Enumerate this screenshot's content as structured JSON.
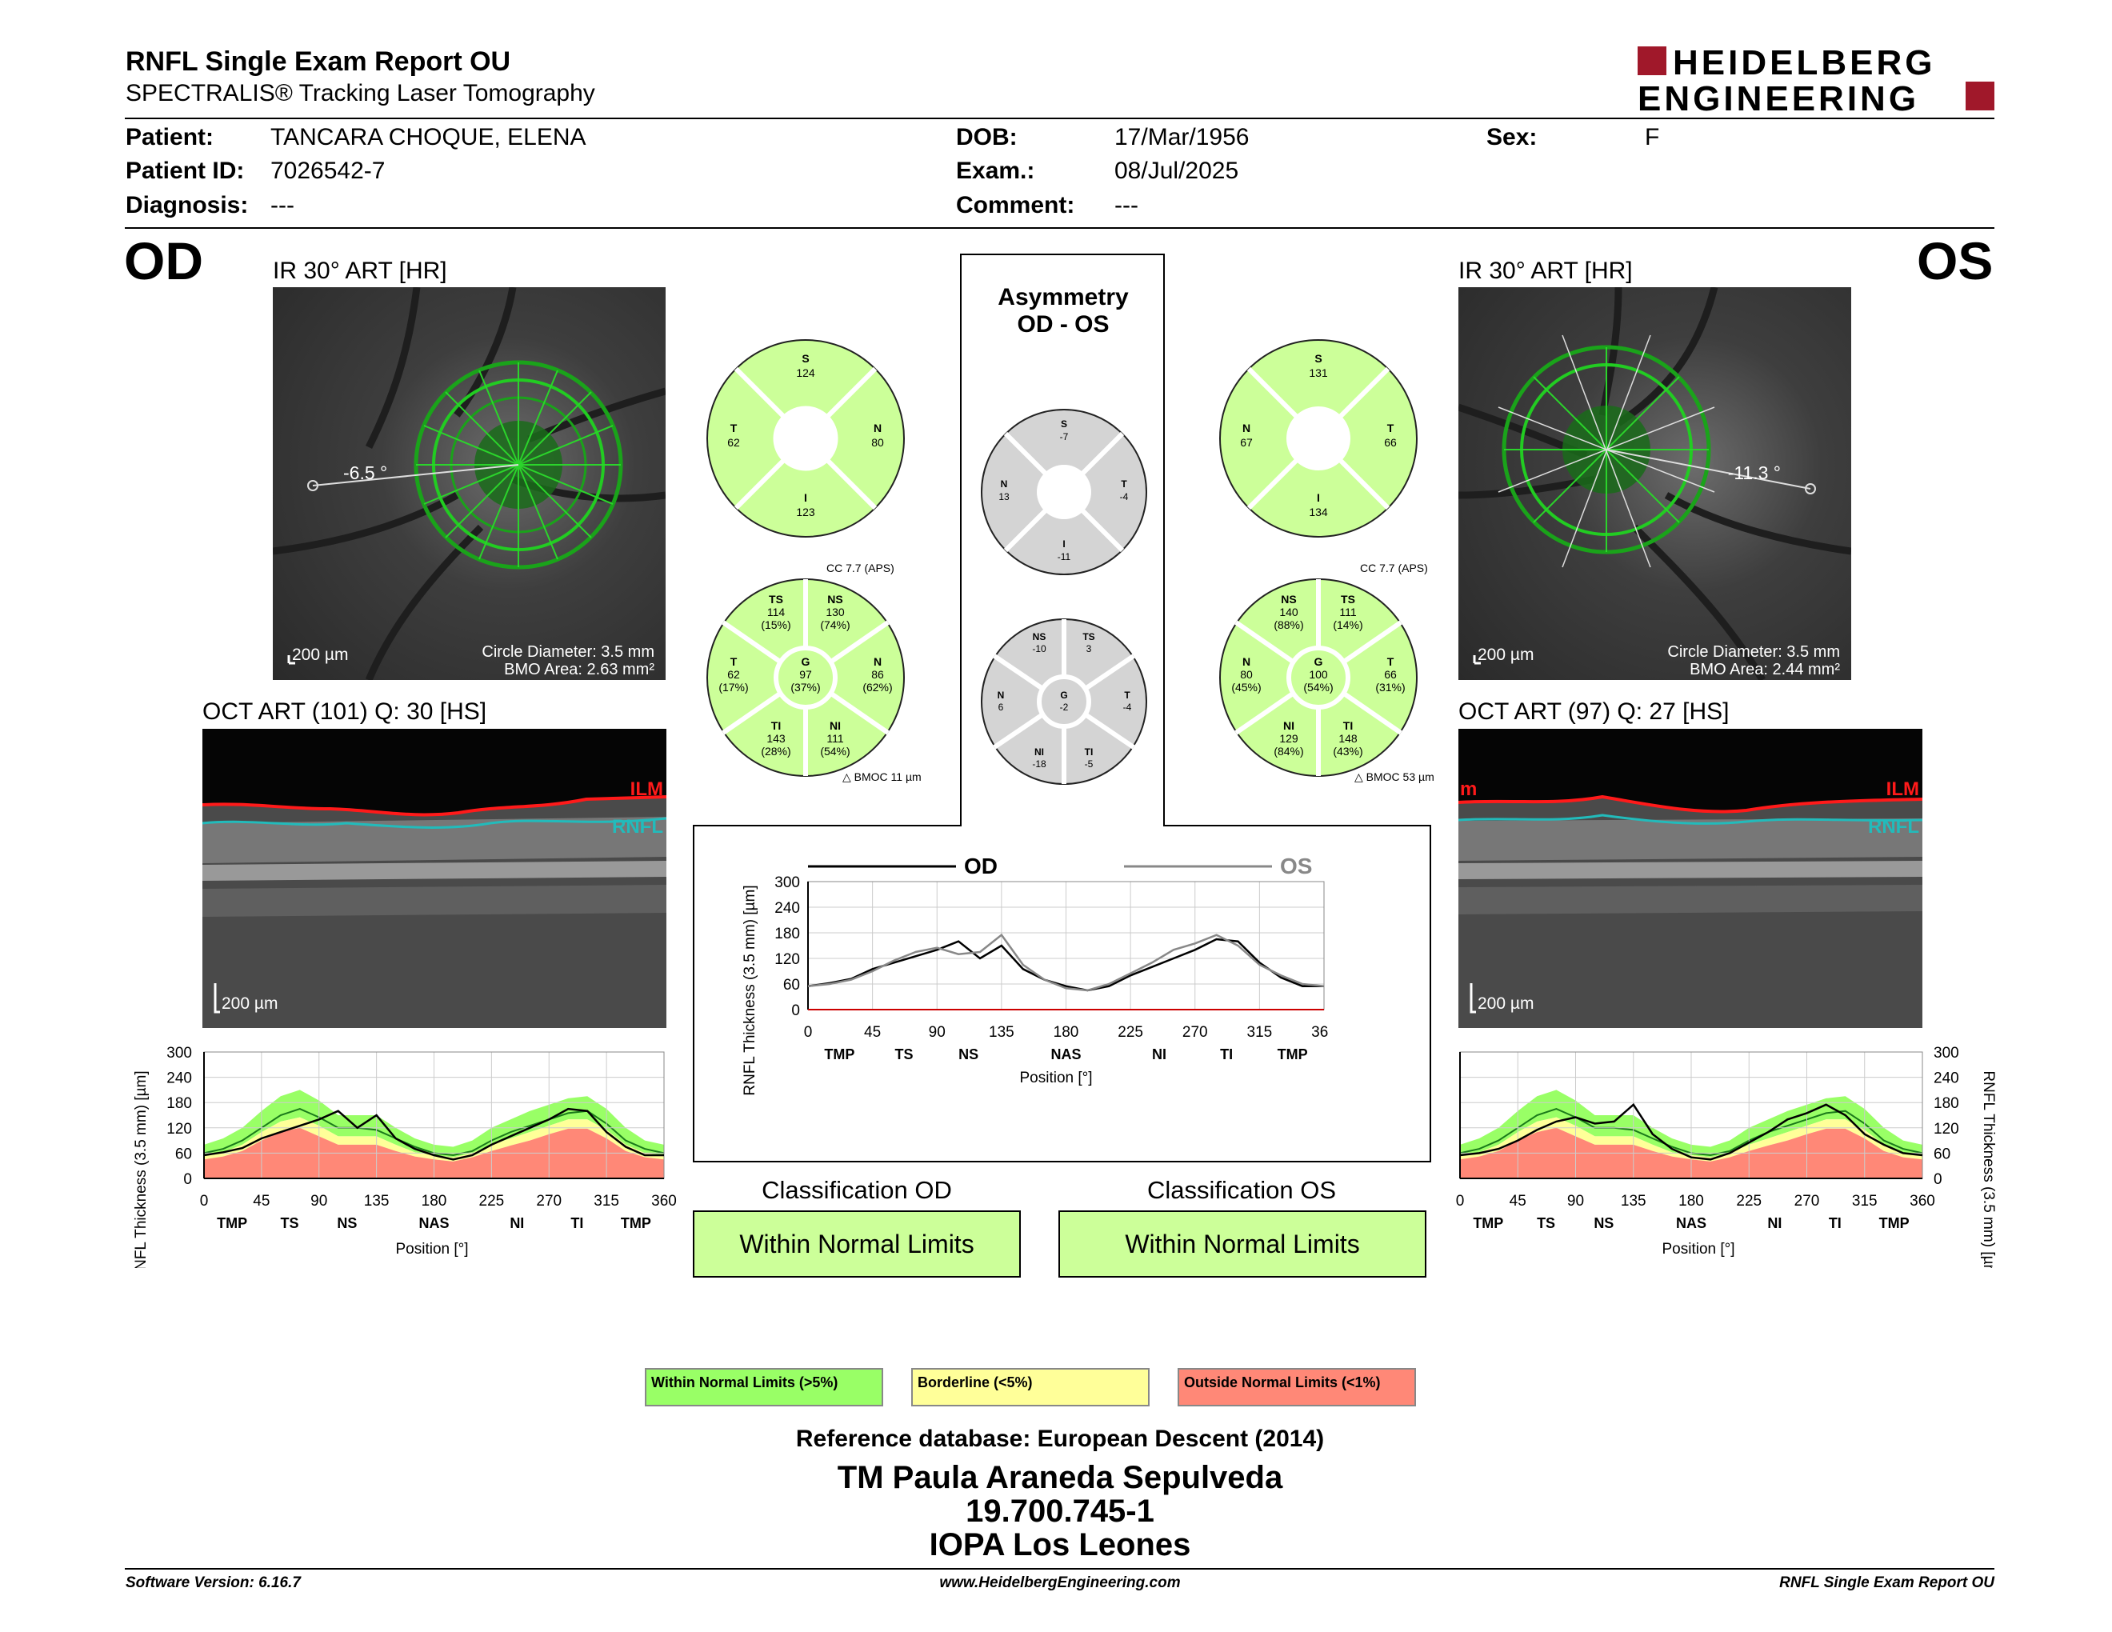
{
  "header": {
    "title": "RNFL Single Exam Report OU",
    "subtitle": "SPECTRALIS® Tracking Laser Tomography",
    "logo_line1": "HEIDELBERG",
    "logo_line2": "ENGINEERING"
  },
  "patient": {
    "patient_label": "Patient:",
    "patient_value": "TANCARA CHOQUE, ELENA",
    "id_label": "Patient ID:",
    "id_value": "7026542-7",
    "diagnosis_label": "Diagnosis:",
    "diagnosis_value": "---",
    "dob_label": "DOB:",
    "dob_value": "17/Mar/1956",
    "exam_label": "Exam.:",
    "exam_value": "08/Jul/2025",
    "comment_label": "Comment:",
    "comment_value": "---",
    "sex_label": "Sex:",
    "sex_value": "F"
  },
  "od": {
    "eye_label": "OD",
    "ir_caption": "IR 30° ART [HR]",
    "angle": "-6.5 °",
    "scale": "200 µm",
    "circle_diameter": "Circle Diameter: 3.5 mm",
    "bmo_area": "BMO Area: 2.63 mm²",
    "oct_caption": "OCT ART (101) Q: 30 [HS]",
    "oct_scale": "200 µm",
    "ilm": "ILM",
    "rnfl": "RNFL",
    "quad": {
      "S": "124",
      "T": "62",
      "N": "80",
      "I": "123"
    },
    "sector": {
      "TS": "114",
      "TS_pct": "(15%)",
      "NS": "130",
      "NS_pct": "(74%)",
      "T": "62",
      "T_pct": "(17%)",
      "G": "97",
      "G_pct": "(37%)",
      "N": "86",
      "N_pct": "(62%)",
      "TI": "143",
      "TI_pct": "(28%)",
      "NI": "111",
      "NI_pct": "(54%)"
    },
    "cc": "CC 7.7 (APS)",
    "bmoc": "BMOC 11 µm",
    "classification_head": "Classification OD",
    "classification": "Within Normal Limits"
  },
  "os": {
    "eye_label": "OS",
    "ir_caption": "IR 30° ART [HR]",
    "angle": "-11.3 °",
    "scale": "200 µm",
    "circle_diameter": "Circle Diameter: 3.5 mm",
    "bmo_area": "BMO Area: 2.44 mm²",
    "oct_caption": "OCT ART (97) Q: 27 [HS]",
    "oct_scale": "200 µm",
    "ilm": "ILM",
    "rnfl": "RNFL",
    "ilm_left": "m",
    "quad": {
      "S": "131",
      "N": "67",
      "T": "66",
      "I": "134"
    },
    "sector": {
      "NS": "140",
      "NS_pct": "(88%)",
      "TS": "111",
      "TS_pct": "(14%)",
      "N": "80",
      "N_pct": "(45%)",
      "G": "100",
      "G_pct": "(54%)",
      "T": "66",
      "T_pct": "(31%)",
      "NI": "129",
      "NI_pct": "(84%)",
      "TI": "148",
      "TI_pct": "(43%)"
    },
    "cc": "CC 7.7 (APS)",
    "bmoc": "BMOC 53 µm",
    "classification_head": "Classification OS",
    "classification": "Within Normal Limits"
  },
  "asymmetry": {
    "title1": "Asymmetry",
    "title2": "OD - OS",
    "quad": {
      "S": "-7",
      "N": "13",
      "T": "-4",
      "I": "-11"
    },
    "sector": {
      "NS": "-10",
      "TS": "3",
      "N": "6",
      "G": "-2",
      "T": "-4",
      "NI": "-18",
      "TI": "-5"
    }
  },
  "sector_labels": {
    "S": "S",
    "T": "T",
    "N": "N",
    "I": "I",
    "TS": "TS",
    "NS": "NS",
    "G": "G",
    "TI": "TI",
    "NI": "NI"
  },
  "charts": {
    "ylabel": "RNFL Thickness (3.5 mm) [µm]",
    "xlabel": "Position [°]",
    "y_ticks": [
      "300",
      "240",
      "180",
      "120",
      "60",
      "0"
    ],
    "y_ticks_center": [
      "300",
      "240",
      "180",
      "120",
      "60",
      "0"
    ],
    "x_ticks": [
      "0",
      "45",
      "90",
      "135",
      "180",
      "225",
      "270",
      "315",
      "360"
    ],
    "regions_od": [
      "TMP",
      "TS",
      "NS",
      "NAS",
      "NI",
      "TI",
      "TMP"
    ],
    "regions_center": [
      "TMP",
      "TS",
      "NS",
      "NAS",
      "NI",
      "TI",
      "TMP"
    ],
    "regions_os": [
      "TMP",
      "TS",
      "NS",
      "NAS",
      "NI",
      "TI",
      "TMP"
    ],
    "legend_od": "OD",
    "legend_os": "OS"
  },
  "chart_data": [
    {
      "type": "line",
      "title": "",
      "xlabel": "Position [°]",
      "ylabel": "RNFL Thickness (3.5 mm) [µm]",
      "xlim": [
        0,
        360
      ],
      "ylim": [
        0,
        300
      ],
      "x": [
        0,
        15,
        30,
        45,
        60,
        75,
        90,
        105,
        120,
        135,
        150,
        165,
        180,
        195,
        210,
        225,
        240,
        255,
        270,
        285,
        300,
        315,
        330,
        345,
        360
      ],
      "series": [
        {
          "name": "OD",
          "values": [
            55,
            62,
            72,
            95,
            110,
            125,
            140,
            160,
            120,
            150,
            95,
            70,
            55,
            45,
            55,
            80,
            100,
            120,
            140,
            165,
            160,
            110,
            75,
            55,
            55
          ]
        },
        {
          "name": "OS",
          "values": [
            55,
            60,
            70,
            90,
            115,
            135,
            145,
            130,
            135,
            175,
            105,
            70,
            50,
            45,
            60,
            85,
            110,
            140,
            155,
            175,
            150,
            105,
            80,
            60,
            55
          ]
        }
      ]
    },
    {
      "type": "area",
      "title": "",
      "xlabel": "Position [°]",
      "ylabel": "RNFL Thickness (3.5 mm) [µm]",
      "xlim": [
        0,
        360
      ],
      "ylim": [
        0,
        300
      ],
      "x": [
        0,
        15,
        30,
        45,
        60,
        75,
        90,
        105,
        120,
        135,
        150,
        165,
        180,
        195,
        210,
        225,
        240,
        255,
        270,
        285,
        300,
        315,
        330,
        345,
        360
      ],
      "series": [
        {
          "name": "OD",
          "values": [
            55,
            62,
            72,
            95,
            110,
            125,
            140,
            160,
            120,
            150,
            95,
            70,
            55,
            45,
            55,
            80,
            100,
            120,
            140,
            165,
            160,
            110,
            75,
            55,
            55
          ]
        }
      ]
    },
    {
      "type": "area",
      "title": "",
      "xlabel": "Position [°]",
      "ylabel": "RNFL Thickness (3.5 mm) [µm]",
      "xlim": [
        0,
        360
      ],
      "ylim": [
        0,
        300
      ],
      "x": [
        0,
        15,
        30,
        45,
        60,
        75,
        90,
        105,
        120,
        135,
        150,
        165,
        180,
        195,
        210,
        225,
        240,
        255,
        270,
        285,
        300,
        315,
        330,
        345,
        360
      ],
      "series": [
        {
          "name": "OS",
          "values": [
            55,
            60,
            70,
            90,
            115,
            135,
            145,
            130,
            135,
            175,
            105,
            70,
            50,
            45,
            60,
            85,
            110,
            140,
            155,
            175,
            150,
            105,
            80,
            60,
            55
          ]
        }
      ]
    }
  ],
  "norm_bands": {
    "x": [
      0,
      15,
      30,
      45,
      60,
      75,
      90,
      105,
      120,
      135,
      150,
      165,
      180,
      195,
      210,
      225,
      240,
      255,
      270,
      285,
      300,
      315,
      330,
      345,
      360
    ],
    "green_top": [
      80,
      95,
      120,
      160,
      195,
      210,
      185,
      150,
      150,
      150,
      120,
      95,
      80,
      75,
      90,
      120,
      140,
      160,
      175,
      190,
      195,
      165,
      120,
      90,
      80
    ],
    "yellow_top": [
      55,
      62,
      80,
      110,
      135,
      145,
      125,
      100,
      100,
      100,
      80,
      62,
      55,
      50,
      60,
      80,
      95,
      110,
      125,
      140,
      140,
      115,
      80,
      60,
      55
    ],
    "red_top": [
      45,
      52,
      65,
      90,
      110,
      120,
      100,
      80,
      80,
      80,
      65,
      52,
      45,
      40,
      50,
      65,
      78,
      90,
      105,
      118,
      118,
      95,
      65,
      50,
      45
    ],
    "mean": [
      60,
      70,
      90,
      120,
      150,
      165,
      145,
      120,
      120,
      115,
      95,
      75,
      60,
      55,
      65,
      90,
      110,
      125,
      140,
      155,
      160,
      130,
      90,
      70,
      60
    ]
  },
  "legend": {
    "wnl": "Within Normal Limits (>5%)",
    "bl": "Borderline (<5%)",
    "onl": "Outside Normal Limits (<1%)"
  },
  "reference": "Reference database: European Descent (2014)",
  "signature": {
    "line1": "TM Paula Araneda Sepulveda",
    "line2": "19.700.745-1",
    "line3": "IOPA Los Leones"
  },
  "footer": {
    "left": "Software Version: 6.16.7",
    "center": "www.HeidelbergEngineering.com",
    "right": "RNFL Single Exam Report OU"
  },
  "colors": {
    "normal_green": "#ccff99",
    "band_green": "#99ff66",
    "band_yellow": "#ffff99",
    "band_red": "#ff8877",
    "gray_sector": "#d4d4d4",
    "logo_red": "#a0182a",
    "ilm_red": "#ff1a1a",
    "rnfl_teal": "#22bbbb"
  }
}
